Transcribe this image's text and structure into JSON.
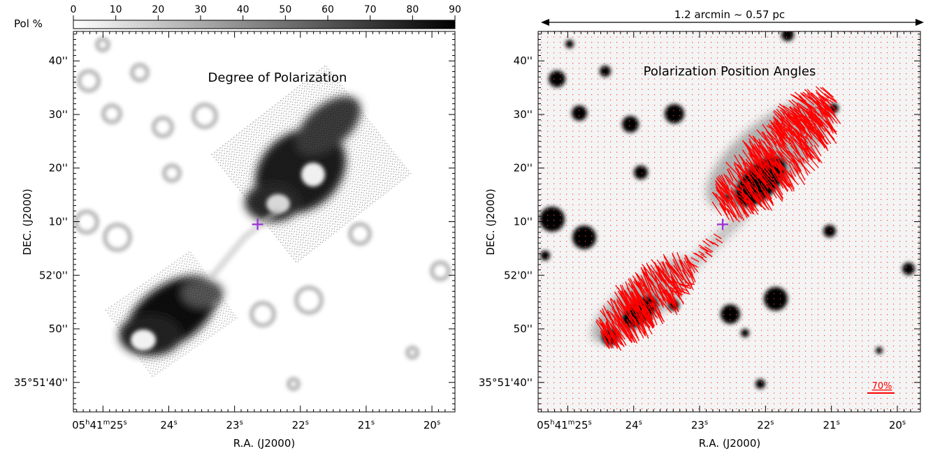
{
  "colorbar": {
    "label": "Pol %",
    "ticks": [
      "0",
      "10",
      "20",
      "30",
      "40",
      "50",
      "60",
      "70",
      "80",
      "90"
    ],
    "range": [
      0,
      90
    ]
  },
  "chart_data": [
    {
      "type": "heatmap",
      "title": "Degree of Polarization",
      "xlabel": "R.A. (J2000)",
      "ylabel": "DEC. (J2000)",
      "x_ticks": [
        {
          "label": "05h41m25s",
          "sec": 25
        },
        {
          "label": "24s",
          "sec": 24
        },
        {
          "label": "23s",
          "sec": 23
        },
        {
          "label": "22s",
          "sec": 22
        },
        {
          "label": "21s",
          "sec": 21
        },
        {
          "label": "20s",
          "sec": 20
        }
      ],
      "y_ticks": [
        {
          "label": "40''",
          "arcsec": 40
        },
        {
          "label": "30''",
          "arcsec": 30
        },
        {
          "label": "20''",
          "arcsec": 20
        },
        {
          "label": "10''",
          "arcsec": 10
        },
        {
          "label": "52'0''",
          "arcsec": 0
        },
        {
          "label": "50''",
          "arcsec": -10
        },
        {
          "label": "35°51'40''",
          "arcsec": -20
        }
      ],
      "xlim_sec": [
        25.45,
        19.65
      ],
      "ylim_arcsec": [
        -25.5,
        45.5
      ],
      "marker": {
        "sec": 22.65,
        "arcsec": 9.5,
        "symbol": "+",
        "color": "#9b30d9"
      }
    },
    {
      "type": "scatter",
      "title": "Polarization Position Angles",
      "xlabel": "R.A. (J2000)",
      "ylabel": "DEC. (J2000)",
      "scale_bar": {
        "label": "1.2 arcmin ~ 0.57 pc"
      },
      "vector_key": {
        "label": "70%",
        "color": "#ff0000"
      },
      "x_ticks": [
        {
          "label": "05h41m25s",
          "sec": 25
        },
        {
          "label": "24s",
          "sec": 24
        },
        {
          "label": "23s",
          "sec": 23
        },
        {
          "label": "22s",
          "sec": 22
        },
        {
          "label": "21s",
          "sec": 21
        },
        {
          "label": "20s",
          "sec": 20
        }
      ],
      "y_ticks": [
        {
          "label": "40''",
          "arcsec": 40
        },
        {
          "label": "30''",
          "arcsec": 30
        },
        {
          "label": "20''",
          "arcsec": 20
        },
        {
          "label": "10''",
          "arcsec": 10
        },
        {
          "label": "52'0''",
          "arcsec": 0
        },
        {
          "label": "50''",
          "arcsec": -10
        },
        {
          "label": "35°51'40''",
          "arcsec": -20
        }
      ],
      "xlim_sec": [
        25.45,
        19.65
      ],
      "ylim_arcsec": [
        -25.5,
        45.5
      ],
      "marker": {
        "sec": 22.65,
        "arcsec": 9.5,
        "symbol": "+",
        "color": "#9b30d9"
      }
    }
  ]
}
